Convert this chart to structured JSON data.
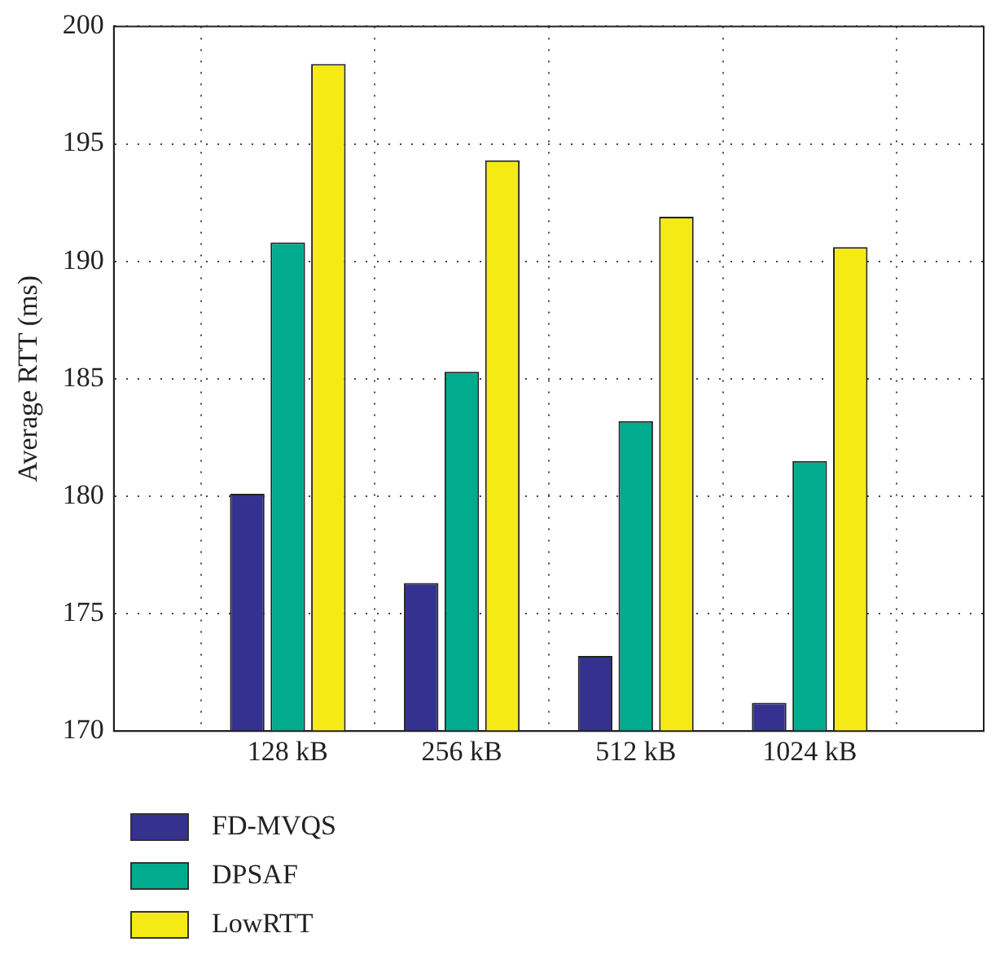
{
  "chart_data": {
    "type": "bar",
    "ylabel": "Average RTT (ms)",
    "categories": [
      "128 kB",
      "256 kB",
      "512 kB",
      "1024 kB"
    ],
    "series": [
      {
        "name": "FD-MVQS",
        "color": "#34318f",
        "values": [
          180.1,
          176.3,
          173.2,
          171.2
        ]
      },
      {
        "name": "DPSAF",
        "color": "#00ab8e",
        "values": [
          190.8,
          185.3,
          183.2,
          181.5
        ]
      },
      {
        "name": "LowRTT",
        "color": "#f5ea14",
        "values": [
          198.4,
          194.3,
          191.9,
          190.6
        ]
      }
    ],
    "ylim": [
      170,
      200
    ],
    "yticks": [
      170,
      175,
      180,
      185,
      190,
      195,
      200
    ],
    "grid": true,
    "legend": "bottom left"
  }
}
